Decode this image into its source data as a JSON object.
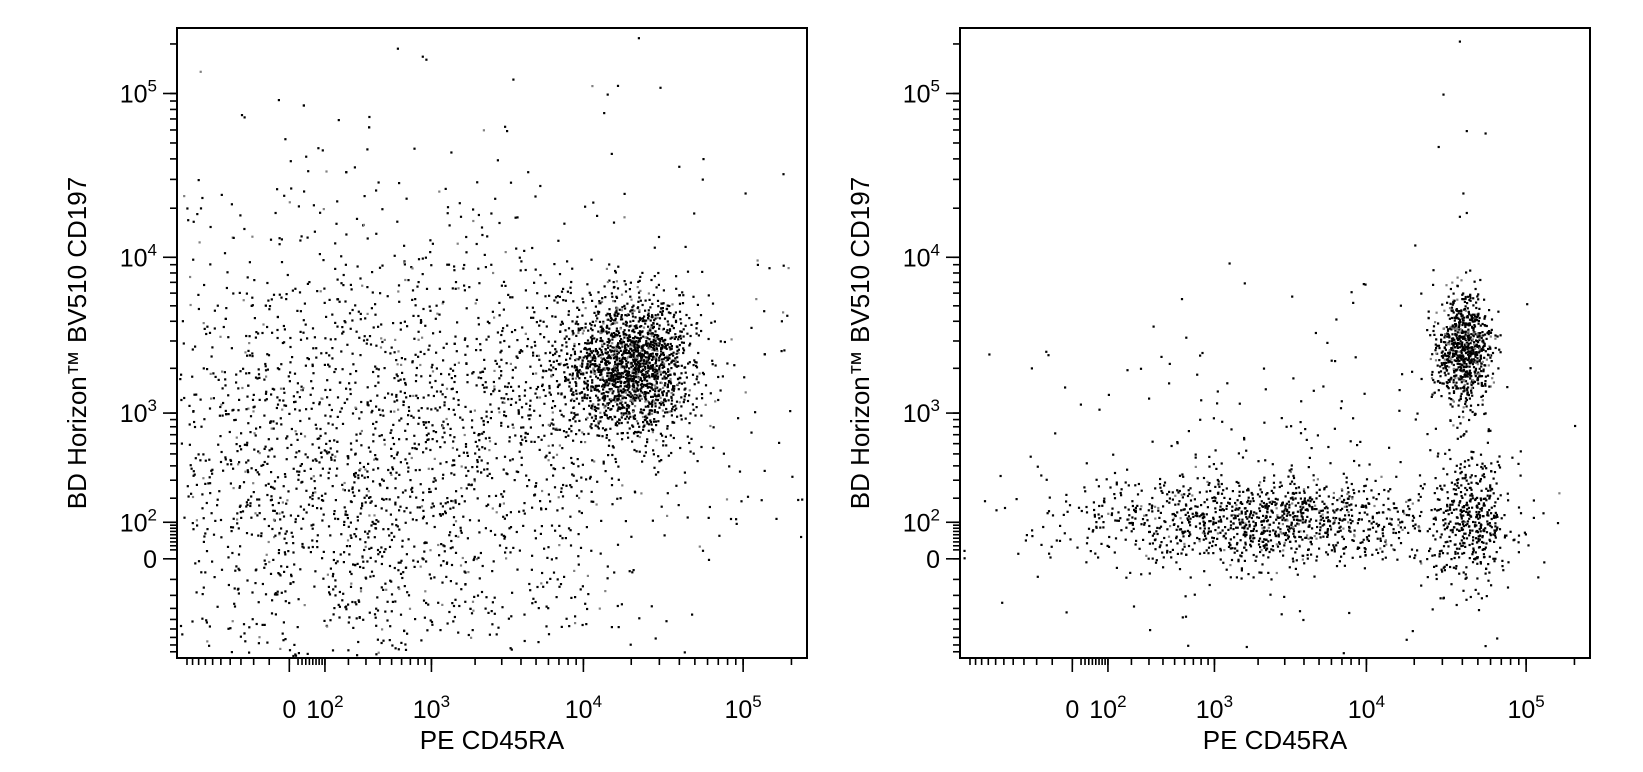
{
  "figure": {
    "background": "#ffffff",
    "dot_color": "#000000",
    "dense_dot_color": "#808080"
  },
  "chart_data": [
    {
      "type": "scatter",
      "panel": "left",
      "title": "",
      "xlabel": "PE CD45RA",
      "ylabel": "BD Horizon™ BV510 CD197",
      "xscale": "biexponential",
      "yscale": "biexponential",
      "xlim": [
        -600,
        250000
      ],
      "ylim": [
        -450,
        250000
      ],
      "grid": false,
      "legend": "none",
      "x_ticks": [
        {
          "label": "0",
          "value": 0
        },
        {
          "base": "10",
          "exp": "2",
          "value": 100
        },
        {
          "base": "10",
          "exp": "3",
          "value": 1000
        },
        {
          "base": "10",
          "exp": "4",
          "value": 10000
        },
        {
          "base": "10",
          "exp": "5",
          "value": 100000
        }
      ],
      "y_ticks": [
        {
          "label": "0",
          "value": 0
        },
        {
          "base": "10",
          "exp": "2",
          "value": 100
        },
        {
          "base": "10",
          "exp": "3",
          "value": 1000
        },
        {
          "base": "10",
          "exp": "4",
          "value": 10000
        },
        {
          "base": "10",
          "exp": "5",
          "value": 100000
        }
      ],
      "populations": [
        {
          "x": 20000,
          "y": 2200,
          "n": 1700,
          "spread_x": 0.19,
          "spread_y": 0.2
        },
        {
          "x": 8000,
          "y": 1600,
          "n": 350,
          "spread_x": 0.35,
          "spread_y": 0.3
        },
        {
          "x": 400,
          "y": 600,
          "n": 2200,
          "spread_x": 1.0,
          "spread_y": 0.8
        },
        {
          "x": 100,
          "y": 150,
          "n": 500,
          "spread_x": 0.7,
          "spread_y": 0.5
        }
      ],
      "outlier_points": [
        {
          "x": 550,
          "y": 190000
        },
        {
          "x": 850,
          "y": 170000
        },
        {
          "x": 22000,
          "y": 220000
        },
        {
          "x": -150,
          "y": 75000
        },
        {
          "x": 150,
          "y": 70000
        },
        {
          "x": 14000,
          "y": 100000
        },
        {
          "x": 30000,
          "y": 110000
        },
        {
          "x": 3200,
          "y": 60000
        },
        {
          "x": 60000,
          "y": 120
        },
        {
          "x": 70000,
          "y": 60
        },
        {
          "x": 28000,
          "y": -300
        }
      ]
    },
    {
      "type": "scatter",
      "panel": "right",
      "title": "",
      "xlabel": "PE CD45RA",
      "ylabel": "BD Horizon™ BV510 CD197",
      "xscale": "biexponential",
      "yscale": "biexponential",
      "xlim": [
        -600,
        250000
      ],
      "ylim": [
        -450,
        250000
      ],
      "grid": false,
      "legend": "none",
      "x_ticks": [
        {
          "label": "0",
          "value": 0
        },
        {
          "base": "10",
          "exp": "2",
          "value": 100
        },
        {
          "base": "10",
          "exp": "3",
          "value": 1000
        },
        {
          "base": "10",
          "exp": "4",
          "value": 10000
        },
        {
          "base": "10",
          "exp": "5",
          "value": 100000
        }
      ],
      "y_ticks": [
        {
          "label": "0",
          "value": 0
        },
        {
          "base": "10",
          "exp": "2",
          "value": 100
        },
        {
          "base": "10",
          "exp": "3",
          "value": 1000
        },
        {
          "base": "10",
          "exp": "4",
          "value": 10000
        },
        {
          "base": "10",
          "exp": "5",
          "value": 100000
        }
      ],
      "populations": [
        {
          "x": 40000,
          "y": 2700,
          "n": 800,
          "spread_x": 0.09,
          "spread_y": 0.17
        },
        {
          "x": 3000,
          "y": 110,
          "n": 950,
          "spread_x": 0.45,
          "spread_y": 0.13
        },
        {
          "x": 45000,
          "y": 110,
          "n": 450,
          "spread_x": 0.13,
          "spread_y": 0.2
        },
        {
          "x": 400,
          "y": 100,
          "n": 260,
          "spread_x": 0.45,
          "spread_y": 0.18
        },
        {
          "x": 3000,
          "y": 400,
          "n": 180,
          "spread_x": 0.7,
          "spread_y": 0.5
        }
      ],
      "outlier_points": [
        {
          "x": 38000,
          "y": 210000
        },
        {
          "x": 30000,
          "y": 100000
        },
        {
          "x": 42000,
          "y": 60000
        },
        {
          "x": 55000,
          "y": 58000
        },
        {
          "x": 28000,
          "y": 48000
        },
        {
          "x": 40000,
          "y": 25000
        },
        {
          "x": 38000,
          "y": 18000
        },
        {
          "x": 42000,
          "y": 19000
        },
        {
          "x": 20000,
          "y": 12000
        },
        {
          "x": 1600,
          "y": 7000
        },
        {
          "x": 3300,
          "y": 5800
        },
        {
          "x": -350,
          "y": 2500
        },
        {
          "x": 100000,
          "y": 5200
        },
        {
          "x": 110000,
          "y": 120
        },
        {
          "x": -100,
          "y": -40
        },
        {
          "x": -250,
          "y": 160
        },
        {
          "x": 55000,
          "y": -350
        },
        {
          "x": 65000,
          "y": -300
        },
        {
          "x": 300,
          "y": -250
        }
      ]
    }
  ]
}
